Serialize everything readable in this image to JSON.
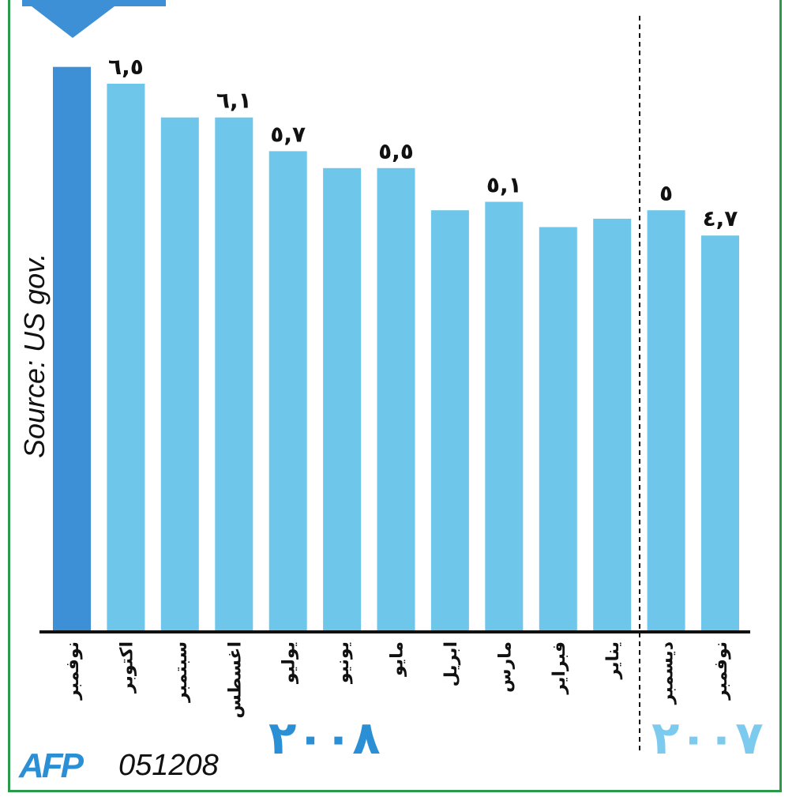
{
  "chart_data": {
    "type": "bar",
    "categories": [
      "نوفمبر",
      "ديسمبر",
      "يناير",
      "فبراير",
      "مارس",
      "ابريل",
      "مايو",
      "يونيو",
      "يوليو",
      "اغسطس",
      "سبتمبر",
      "اكتوبر",
      "نوفمبر"
    ],
    "values": [
      4.7,
      5.0,
      4.9,
      4.8,
      5.1,
      5.0,
      5.5,
      5.5,
      5.7,
      6.1,
      6.1,
      6.5,
      6.7
    ],
    "value_labels": [
      "٤,٧",
      "٥",
      "",
      "",
      "٥,١",
      "",
      "٥,٥",
      "",
      "٥,٧",
      "٦,١",
      "",
      "٦,٥",
      ""
    ],
    "ylim": [
      0,
      6.8
    ],
    "grid": false,
    "highlight_last": true
  },
  "years": {
    "y2008": "٢٠٠٨",
    "y2007": "٢٠٠٧"
  },
  "source_text": "Source: US gov.",
  "credit": {
    "agency": "AFP",
    "code": "051208"
  },
  "colors": {
    "bar": "#6ec6ea",
    "highlight": "#3d8fd6",
    "frame": "#2a9a4a",
    "year2008": "#2b8fd6",
    "year2007": "#7ccbef"
  }
}
